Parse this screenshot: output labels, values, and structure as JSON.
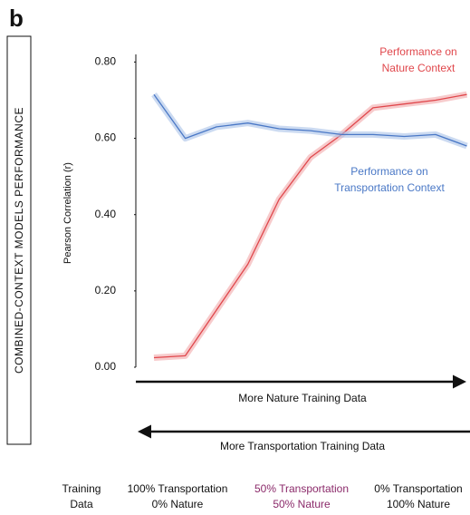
{
  "chart_data": {
    "type": "line",
    "panel_label": "b",
    "side_label": "COMBINED-CONTEXT MODELS PERFORMANCE",
    "ylabel": "Pearson Correlation (r)",
    "x": [
      0,
      0.1,
      0.2,
      0.3,
      0.4,
      0.5,
      0.6,
      0.7,
      0.8,
      0.9,
      1.0
    ],
    "xlim": [
      -0.058,
      1.01
    ],
    "ylim": [
      0,
      0.82
    ],
    "yticks": [
      {
        "value": 0,
        "label": "0.00"
      },
      {
        "value": 0.2,
        "label": "0.20"
      },
      {
        "value": 0.4,
        "label": "0.40"
      },
      {
        "value": 0.6,
        "label": "0.60"
      },
      {
        "value": 0.8,
        "label": "0.80"
      }
    ],
    "series": [
      {
        "name": [
          "Performance on",
          "Nature Context"
        ],
        "color": "#e0474c",
        "band": "#f2a8aa",
        "values": [
          0.025,
          0.03,
          0.15,
          0.27,
          0.44,
          0.55,
          0.61,
          0.68,
          0.69,
          0.7,
          0.715
        ]
      },
      {
        "name": [
          "Performance on",
          "Transportation Context"
        ],
        "color": "#4a78c6",
        "band": "#a9c1e8",
        "values": [
          0.715,
          0.6,
          0.63,
          0.64,
          0.625,
          0.62,
          0.61,
          0.61,
          0.605,
          0.61,
          0.58
        ]
      }
    ],
    "arrows": [
      "More Nature Training Data",
      "More Transportation Training Data"
    ],
    "bottom_row": [
      {
        "lines": [
          "Training",
          "Data"
        ],
        "color": "#111111"
      },
      {
        "lines": [
          "100% Transportation",
          "0% Nature"
        ],
        "color": "#111111"
      },
      {
        "lines": [
          "50% Transportation",
          "50% Nature"
        ],
        "color": "#8b2a6a"
      },
      {
        "lines": [
          "0% Transportation",
          "100% Nature"
        ],
        "color": "#111111"
      }
    ]
  }
}
